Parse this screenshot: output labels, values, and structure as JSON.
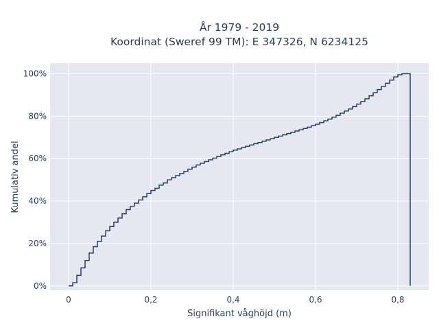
{
  "chart_data": {
    "type": "line",
    "line_shape": "step",
    "title": [
      "År 1979 - 2019",
      "Koordinat (Sweref 99 TM): E 347326, N 6234125"
    ],
    "xlabel": "Signifikant våghöjd (m)",
    "ylabel": "Kumulativ andel",
    "xlim": [
      -0.045,
      0.875
    ],
    "ylim": [
      -0.02,
      1.05
    ],
    "xticks": [
      0,
      0.2,
      0.4,
      0.6,
      0.8
    ],
    "xtick_labels": [
      "0",
      "0,2",
      "0,4",
      "0,6",
      "0,8"
    ],
    "yticks": [
      0,
      0.2,
      0.4,
      0.6,
      0.8,
      1.0
    ],
    "ytick_labels": [
      "0%",
      "20%",
      "40%",
      "60%",
      "80%",
      "100%"
    ],
    "grid": true,
    "series": [
      {
        "x": [
          0,
          0.01,
          0.02,
          0.03,
          0.04,
          0.05,
          0.06,
          0.07,
          0.08,
          0.09,
          0.1,
          0.11,
          0.12,
          0.13,
          0.14,
          0.15,
          0.16,
          0.17,
          0.18,
          0.19,
          0.2,
          0.21,
          0.22,
          0.23,
          0.24,
          0.25,
          0.26,
          0.27,
          0.28,
          0.29,
          0.3,
          0.31,
          0.32,
          0.33,
          0.34,
          0.35,
          0.36,
          0.37,
          0.38,
          0.39,
          0.4,
          0.41,
          0.42,
          0.43,
          0.44,
          0.45,
          0.46,
          0.47,
          0.48,
          0.49,
          0.5,
          0.51,
          0.52,
          0.53,
          0.54,
          0.55,
          0.56,
          0.57,
          0.58,
          0.59,
          0.6,
          0.61,
          0.62,
          0.63,
          0.64,
          0.65,
          0.66,
          0.67,
          0.68,
          0.69,
          0.7,
          0.71,
          0.72,
          0.73,
          0.74,
          0.75,
          0.76,
          0.77,
          0.78,
          0.79,
          0.8,
          0.81,
          0.83
        ],
        "y": [
          0,
          0.015,
          0.05,
          0.085,
          0.12,
          0.155,
          0.185,
          0.21,
          0.235,
          0.26,
          0.28,
          0.3,
          0.32,
          0.34,
          0.36,
          0.375,
          0.39,
          0.405,
          0.42,
          0.435,
          0.45,
          0.46,
          0.475,
          0.485,
          0.5,
          0.51,
          0.52,
          0.53,
          0.54,
          0.55,
          0.56,
          0.57,
          0.578,
          0.586,
          0.594,
          0.602,
          0.61,
          0.618,
          0.625,
          0.632,
          0.64,
          0.646,
          0.652,
          0.658,
          0.664,
          0.67,
          0.676,
          0.682,
          0.688,
          0.694,
          0.7,
          0.706,
          0.712,
          0.718,
          0.724,
          0.73,
          0.736,
          0.742,
          0.748,
          0.755,
          0.762,
          0.77,
          0.778,
          0.786,
          0.795,
          0.804,
          0.814,
          0.824,
          0.834,
          0.845,
          0.857,
          0.869,
          0.882,
          0.896,
          0.91,
          0.925,
          0.94,
          0.955,
          0.97,
          0.985,
          0.995,
          1.0,
          1.0
        ]
      }
    ]
  },
  "colors": {
    "plot_background": "#e5e8f1",
    "grid": "#ffffff",
    "line": "#2a3f5f",
    "text": "#2a3f5f"
  }
}
